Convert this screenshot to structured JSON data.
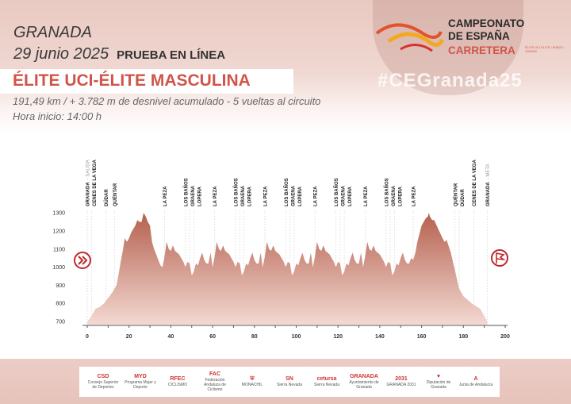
{
  "header": {
    "city": "GRANADA",
    "date": "29 junio 2025",
    "event_type": "PRUEBA EN LÍNEA",
    "category": "ÉLITE UCI-ÉLITE MASCULINA",
    "details": "191,49 km / + 3.782 m de desnivel acumulado - 5 vueltas al circuito",
    "start_time": "Hora inicio: 14:00 h",
    "hashtag": "#CEGranada25"
  },
  "brand": {
    "line1": "CAMPEONATO",
    "line2": "DE ESPAÑA",
    "line3": "CARRETERA",
    "small": "ÉLITE UCI ÉLITE / SUB23 / JÚNIOR",
    "accent": "#d0544a"
  },
  "chart_data": {
    "type": "area",
    "title": "",
    "xlabel": "",
    "ylabel": "",
    "xlim": [
      0,
      200
    ],
    "ylim": [
      700,
      1300
    ],
    "xticks": [
      0,
      20,
      40,
      60,
      80,
      100,
      120,
      140,
      160,
      180,
      200
    ],
    "yticks": [
      700,
      800,
      900,
      1000,
      1100,
      1200,
      1300
    ],
    "fill_top_color": "#b5604e",
    "fill_bottom_color": "#f3d9d2",
    "grid": false,
    "profile": [
      [
        0,
        700
      ],
      [
        2,
        730
      ],
      [
        4,
        770
      ],
      [
        6,
        780
      ],
      [
        8,
        800
      ],
      [
        10,
        830
      ],
      [
        12,
        860
      ],
      [
        14,
        900
      ],
      [
        15,
        960
      ],
      [
        16,
        1030
      ],
      [
        17,
        1090
      ],
      [
        18,
        1160
      ],
      [
        19,
        1140
      ],
      [
        20,
        1160
      ],
      [
        21,
        1190
      ],
      [
        23,
        1230
      ],
      [
        24,
        1260
      ],
      [
        25,
        1250
      ],
      [
        26,
        1250
      ],
      [
        27,
        1300
      ],
      [
        28,
        1280
      ],
      [
        29,
        1250
      ],
      [
        30,
        1230
      ],
      [
        31,
        1140
      ],
      [
        32,
        1100
      ],
      [
        33,
        1070
      ],
      [
        34,
        1040
      ],
      [
        35,
        1010
      ],
      [
        36,
        1000
      ],
      [
        37,
        1060
      ],
      [
        38,
        1140
      ],
      [
        39,
        1100
      ],
      [
        40,
        1090
      ],
      [
        41,
        1120
      ],
      [
        42,
        1090
      ],
      [
        44,
        1070
      ],
      [
        46,
        1030
      ],
      [
        47,
        1000
      ],
      [
        48,
        1030
      ],
      [
        49,
        1020
      ],
      [
        50,
        955
      ],
      [
        51,
        975
      ],
      [
        52,
        1020
      ],
      [
        53,
        1010
      ],
      [
        54,
        1050
      ],
      [
        55,
        1080
      ],
      [
        56,
        1040
      ],
      [
        57,
        1020
      ],
      [
        58,
        1020
      ],
      [
        59,
        1080
      ],
      [
        60,
        1000
      ],
      [
        61,
        1060
      ],
      [
        62,
        1140
      ],
      [
        63,
        1100
      ],
      [
        64,
        1090
      ],
      [
        65,
        1120
      ],
      [
        66,
        1090
      ],
      [
        68,
        1070
      ],
      [
        70,
        1030
      ],
      [
        71,
        1000
      ],
      [
        72,
        1030
      ],
      [
        73,
        1020
      ],
      [
        74,
        955
      ],
      [
        75,
        975
      ],
      [
        76,
        1020
      ],
      [
        77,
        1010
      ],
      [
        78,
        1050
      ],
      [
        79,
        1080
      ],
      [
        80,
        1040
      ],
      [
        81,
        1020
      ],
      [
        82,
        1020
      ],
      [
        83,
        1080
      ],
      [
        84,
        1000
      ],
      [
        85,
        1060
      ],
      [
        86,
        1140
      ],
      [
        87,
        1100
      ],
      [
        88,
        1090
      ],
      [
        89,
        1120
      ],
      [
        90,
        1090
      ],
      [
        92,
        1070
      ],
      [
        94,
        1030
      ],
      [
        95,
        1000
      ],
      [
        96,
        1030
      ],
      [
        97,
        1020
      ],
      [
        98,
        955
      ],
      [
        99,
        975
      ],
      [
        100,
        1020
      ],
      [
        101,
        1010
      ],
      [
        102,
        1050
      ],
      [
        103,
        1080
      ],
      [
        104,
        1040
      ],
      [
        105,
        1020
      ],
      [
        106,
        1020
      ],
      [
        107,
        1080
      ],
      [
        108,
        1000
      ],
      [
        109,
        1060
      ],
      [
        110,
        1140
      ],
      [
        111,
        1100
      ],
      [
        112,
        1090
      ],
      [
        113,
        1120
      ],
      [
        114,
        1090
      ],
      [
        116,
        1070
      ],
      [
        118,
        1030
      ],
      [
        119,
        1000
      ],
      [
        120,
        1030
      ],
      [
        121,
        1020
      ],
      [
        122,
        955
      ],
      [
        123,
        975
      ],
      [
        124,
        1020
      ],
      [
        125,
        1010
      ],
      [
        126,
        1050
      ],
      [
        127,
        1080
      ],
      [
        128,
        1040
      ],
      [
        129,
        1020
      ],
      [
        130,
        1020
      ],
      [
        131,
        1080
      ],
      [
        132,
        1000
      ],
      [
        133,
        1060
      ],
      [
        134,
        1140
      ],
      [
        135,
        1100
      ],
      [
        136,
        1090
      ],
      [
        137,
        1120
      ],
      [
        138,
        1090
      ],
      [
        140,
        1070
      ],
      [
        142,
        1030
      ],
      [
        143,
        1000
      ],
      [
        144,
        1030
      ],
      [
        145,
        1020
      ],
      [
        146,
        955
      ],
      [
        147,
        975
      ],
      [
        148,
        1020
      ],
      [
        149,
        1010
      ],
      [
        150,
        1050
      ],
      [
        151,
        1080
      ],
      [
        152,
        1040
      ],
      [
        153,
        1020
      ],
      [
        154,
        1020
      ],
      [
        155,
        1050
      ],
      [
        156,
        1040
      ],
      [
        157,
        1080
      ],
      [
        158,
        1140
      ],
      [
        160,
        1230
      ],
      [
        161,
        1250
      ],
      [
        162,
        1270
      ],
      [
        163,
        1280
      ],
      [
        163.5,
        1300
      ],
      [
        164,
        1280
      ],
      [
        165,
        1260
      ],
      [
        166,
        1260
      ],
      [
        168,
        1210
      ],
      [
        170,
        1160
      ],
      [
        171,
        1140
      ],
      [
        172,
        1150
      ],
      [
        174,
        1080
      ],
      [
        176,
        980
      ],
      [
        178,
        880
      ],
      [
        180,
        840
      ],
      [
        184,
        800
      ],
      [
        188,
        770
      ],
      [
        191.5,
        700
      ]
    ],
    "locations": [
      {
        "km": 0,
        "name": "GRANADA",
        "note": "- SALIDA"
      },
      {
        "km": 2,
        "name": "CENES DE LA VEGA"
      },
      {
        "km": 9,
        "name": "DÚDAR"
      },
      {
        "km": 13,
        "name": "QUÉNTAR"
      },
      {
        "km": 37,
        "name": "LA PEZA"
      },
      {
        "km": 47,
        "name": "LOS BAÑOS"
      },
      {
        "km": 49,
        "name": "GRAENA"
      },
      {
        "km": 51,
        "name": "LOPERA"
      },
      {
        "km": 61,
        "name": "LA PEZA"
      },
      {
        "km": 71,
        "name": "LOS BAÑOS"
      },
      {
        "km": 73,
        "name": "GRAENA"
      },
      {
        "km": 75,
        "name": "LOPERA"
      },
      {
        "km": 85,
        "name": "LA PEZA"
      },
      {
        "km": 95,
        "name": "LOS BAÑOS"
      },
      {
        "km": 97,
        "name": "GRAENA"
      },
      {
        "km": 99,
        "name": "LOPERA"
      },
      {
        "km": 109,
        "name": "LA PEZA"
      },
      {
        "km": 119,
        "name": "LOS BAÑOS"
      },
      {
        "km": 121,
        "name": "GRAENA"
      },
      {
        "km": 123,
        "name": "LOPERA"
      },
      {
        "km": 133,
        "name": "LA PEZA"
      },
      {
        "km": 143,
        "name": "LOS BAÑOS"
      },
      {
        "km": 145,
        "name": "GRAENA"
      },
      {
        "km": 147,
        "name": "LOPERA"
      },
      {
        "km": 156,
        "name": "LA PEZA"
      },
      {
        "km": 176,
        "name": "QUÉNTAR"
      },
      {
        "km": 178,
        "name": "DÚDAR"
      },
      {
        "km": 185,
        "name": "CENES DE LA VEGA"
      },
      {
        "km": 191.5,
        "name": "GRANADA",
        "note": "- META"
      }
    ],
    "start_icon": "start-chevrons-icon",
    "finish_icon": "finish-flag-icon"
  },
  "footer": {
    "logos": [
      {
        "title": "CSD",
        "text": "Consejo Superior de Deportes"
      },
      {
        "title": "MYD",
        "text": "Programa Mujer y Deporte"
      },
      {
        "title": "RFEC",
        "text": "CICLISMO"
      },
      {
        "title": "FAC",
        "text": "Federación Andaluza de Ciclismo"
      },
      {
        "title": "⛨",
        "text": "MONACHIL"
      },
      {
        "title": "SN",
        "text": "Sierra Nevada"
      },
      {
        "title": "cetursa",
        "text": "Sierra Nevada"
      },
      {
        "title": "GRANADA",
        "text": "Ayuntamiento de Granada"
      },
      {
        "title": "2031",
        "text": "GRANADA 2031"
      },
      {
        "title": "♥",
        "text": "Diputación de Granada"
      },
      {
        "title": "A",
        "text": "Junta de Andalucía"
      }
    ]
  }
}
